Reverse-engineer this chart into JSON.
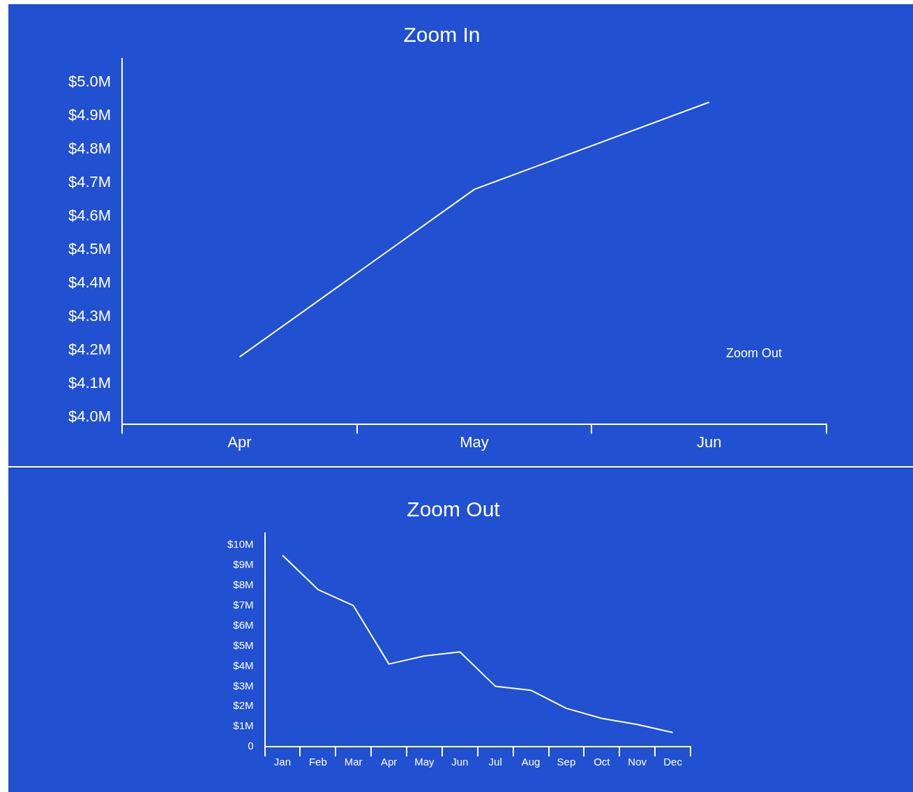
{
  "chart_data": [
    {
      "type": "line",
      "title": "Zoom In",
      "categories": [
        "Apr",
        "May",
        "Jun"
      ],
      "values": [
        4.18,
        4.68,
        4.94
      ],
      "color": "#ffffff",
      "ylim": [
        3.98,
        5.07
      ],
      "yticks": [
        {
          "value": 4.0,
          "label": "$4.0M"
        },
        {
          "value": 4.1,
          "label": "$4.1M"
        },
        {
          "value": 4.2,
          "label": "$4.2M"
        },
        {
          "value": 4.3,
          "label": "$4.3M"
        },
        {
          "value": 4.4,
          "label": "$4.4M"
        },
        {
          "value": 4.5,
          "label": "$4.5M"
        },
        {
          "value": 4.6,
          "label": "$4.6M"
        },
        {
          "value": 4.7,
          "label": "$4.7M"
        },
        {
          "value": 4.8,
          "label": "$4.8M"
        },
        {
          "value": 4.9,
          "label": "$4.9M"
        },
        {
          "value": 5.0,
          "label": "$5.0M"
        }
      ],
      "grid": false,
      "legend": false,
      "marker": "none",
      "annotations": [
        "Zoom Out"
      ]
    },
    {
      "type": "line",
      "title": "Zoom Out",
      "categories": [
        "Jan",
        "Feb",
        "Mar",
        "Apr",
        "May",
        "Jun",
        "Jul",
        "Aug",
        "Sep",
        "Oct",
        "Nov",
        "Dec"
      ],
      "values": [
        9.5,
        7.8,
        7.0,
        4.1,
        4.5,
        4.7,
        3.0,
        2.8,
        1.9,
        1.4,
        1.1,
        0.7
      ],
      "color": "#ffffff",
      "ylim": [
        0,
        10.6
      ],
      "yticks": [
        0,
        {
          "value": 1,
          "label": "$1M"
        },
        {
          "value": 2,
          "label": "$2M"
        },
        {
          "value": 3,
          "label": "$3M"
        },
        {
          "value": 4,
          "label": "$4M"
        },
        {
          "value": 5,
          "label": "$5M"
        },
        {
          "value": 6,
          "label": "$6M"
        },
        {
          "value": 7,
          "label": "$7M"
        },
        {
          "value": 8,
          "label": "$8M"
        },
        {
          "value": 9,
          "label": "$9M"
        },
        {
          "value": 10,
          "label": "$10M"
        }
      ],
      "grid": false,
      "legend": false,
      "marker": "none"
    }
  ]
}
